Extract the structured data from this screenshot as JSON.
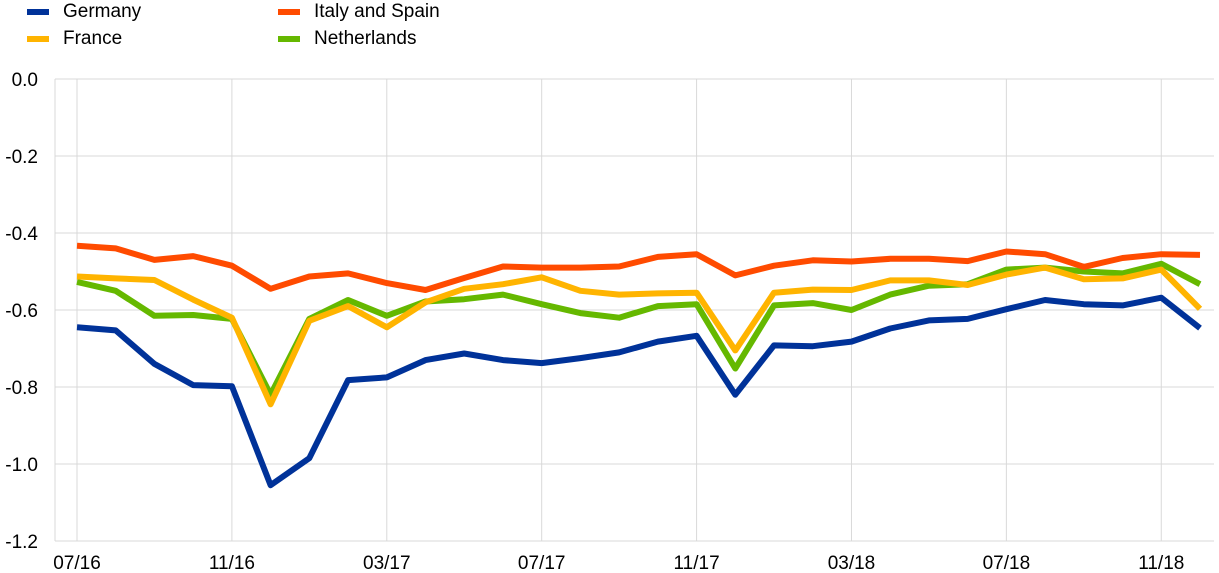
{
  "chart_data": {
    "type": "line",
    "title": "",
    "xlabel": "",
    "ylabel": "",
    "ylim": [
      -1.2,
      0.0
    ],
    "y_ticks": [
      "0.0",
      "-0.2",
      "-0.4",
      "-0.6",
      "-0.8",
      "-1.0",
      "-1.2"
    ],
    "y_tick_values": [
      0.0,
      -0.2,
      -0.4,
      -0.6,
      -0.8,
      -1.0,
      -1.2
    ],
    "x_ticks": [
      "07/16",
      "11/16",
      "03/17",
      "07/17",
      "11/17",
      "03/18",
      "07/18",
      "11/18"
    ],
    "x_tick_index": [
      0,
      4,
      8,
      12,
      16,
      20,
      24,
      28
    ],
    "grid": "vertical",
    "legend_position": "top-left",
    "categories": [
      "07/16",
      "08/16",
      "09/16",
      "10/16",
      "11/16",
      "12/16",
      "01/17",
      "02/17",
      "03/17",
      "04/17",
      "05/17",
      "06/17",
      "07/17",
      "08/17",
      "09/17",
      "10/17",
      "11/17",
      "12/17",
      "01/18",
      "02/18",
      "03/18",
      "04/18",
      "05/18",
      "06/18",
      "07/18",
      "08/18",
      "09/18",
      "10/18",
      "11/18",
      "12/18"
    ],
    "series": [
      {
        "name": "Germany",
        "color": "#003299",
        "values": [
          -0.645,
          -0.653,
          -0.74,
          -0.795,
          -0.798,
          -1.055,
          -0.985,
          -0.782,
          -0.775,
          -0.73,
          -0.713,
          -0.73,
          -0.738,
          -0.725,
          -0.71,
          -0.682,
          -0.667,
          -0.82,
          -0.692,
          -0.694,
          -0.682,
          -0.648,
          -0.627,
          -0.623,
          -0.598,
          -0.574,
          -0.585,
          -0.588,
          -0.568,
          -0.647
        ]
      },
      {
        "name": "Italy and Spain",
        "color": "#FF4B00",
        "values": [
          -0.433,
          -0.44,
          -0.47,
          -0.46,
          -0.485,
          -0.545,
          -0.513,
          -0.505,
          -0.53,
          -0.548,
          -0.517,
          -0.487,
          -0.49,
          -0.49,
          -0.487,
          -0.462,
          -0.455,
          -0.51,
          -0.485,
          -0.471,
          -0.474,
          -0.467,
          -0.467,
          -0.473,
          -0.448,
          -0.455,
          -0.488,
          -0.465,
          -0.455,
          -0.457
        ]
      },
      {
        "name": "France",
        "color": "#FFB400",
        "values": [
          -0.513,
          -0.518,
          -0.522,
          -0.573,
          -0.62,
          -0.845,
          -0.628,
          -0.59,
          -0.645,
          -0.58,
          -0.545,
          -0.533,
          -0.515,
          -0.55,
          -0.56,
          -0.557,
          -0.555,
          -0.705,
          -0.555,
          -0.547,
          -0.548,
          -0.523,
          -0.523,
          -0.535,
          -0.508,
          -0.49,
          -0.52,
          -0.518,
          -0.495,
          -0.597
        ]
      },
      {
        "name": "Netherlands",
        "color": "#65B800",
        "values": [
          -0.527,
          -0.55,
          -0.615,
          -0.613,
          -0.623,
          -0.82,
          -0.623,
          -0.574,
          -0.615,
          -0.578,
          -0.572,
          -0.56,
          -0.585,
          -0.608,
          -0.62,
          -0.59,
          -0.585,
          -0.752,
          -0.588,
          -0.582,
          -0.6,
          -0.56,
          -0.537,
          -0.533,
          -0.495,
          -0.49,
          -0.5,
          -0.505,
          -0.48,
          -0.533
        ]
      }
    ]
  },
  "legend": {
    "items": [
      {
        "label": "Germany",
        "color": "#003299"
      },
      {
        "label": "Italy and Spain",
        "color": "#FF4B00"
      },
      {
        "label": "France",
        "color": "#FFB400"
      },
      {
        "label": "Netherlands",
        "color": "#65B800"
      }
    ]
  }
}
